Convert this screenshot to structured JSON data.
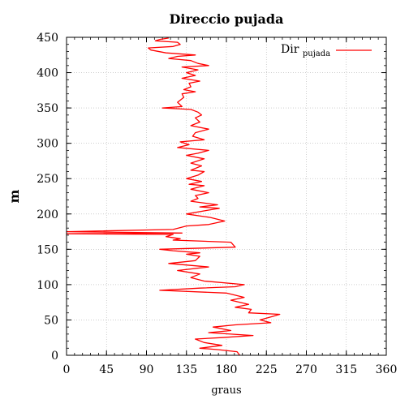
{
  "chart_data": {
    "type": "line",
    "title": "Direccio pujada",
    "xlabel": "graus",
    "ylabel": "m",
    "xlim": [
      0,
      360
    ],
    "ylim": [
      0,
      450
    ],
    "xticks": [
      0,
      45,
      90,
      135,
      180,
      225,
      270,
      315,
      360
    ],
    "yticks": [
      0,
      50,
      100,
      150,
      200,
      250,
      300,
      350,
      400,
      450
    ],
    "grid": true,
    "legend_position": "top-right",
    "legend": {
      "main": "Dir",
      "sub": "pujada"
    },
    "color": "#ff0000",
    "series": [
      {
        "name": "Dir pujada",
        "points": [
          [
            195,
            0
          ],
          [
            192,
            5
          ],
          [
            170,
            8
          ],
          [
            150,
            10
          ],
          [
            175,
            14
          ],
          [
            155,
            18
          ],
          [
            145,
            23
          ],
          [
            175,
            25
          ],
          [
            210,
            28
          ],
          [
            160,
            32
          ],
          [
            185,
            35
          ],
          [
            165,
            40
          ],
          [
            190,
            43
          ],
          [
            230,
            46
          ],
          [
            218,
            50
          ],
          [
            232,
            55
          ],
          [
            240,
            58
          ],
          [
            205,
            60
          ],
          [
            208,
            65
          ],
          [
            190,
            68
          ],
          [
            205,
            72
          ],
          [
            185,
            78
          ],
          [
            200,
            82
          ],
          [
            180,
            88
          ],
          [
            105,
            92
          ],
          [
            150,
            95
          ],
          [
            190,
            97
          ],
          [
            200,
            100
          ],
          [
            155,
            105
          ],
          [
            140,
            110
          ],
          [
            150,
            115
          ],
          [
            125,
            120
          ],
          [
            160,
            125
          ],
          [
            115,
            130
          ],
          [
            145,
            134
          ],
          [
            150,
            140
          ],
          [
            135,
            143
          ],
          [
            150,
            145
          ],
          [
            120,
            148
          ],
          [
            105,
            150
          ],
          [
            190,
            153
          ],
          [
            185,
            160
          ],
          [
            120,
            163
          ],
          [
            128,
            165
          ],
          [
            112,
            168
          ],
          [
            120,
            171
          ],
          [
            0,
            172
          ],
          [
            130,
            173
          ],
          [
            0,
            175
          ],
          [
            120,
            178
          ],
          [
            135,
            183
          ],
          [
            160,
            185
          ],
          [
            178,
            190
          ],
          [
            162,
            195
          ],
          [
            135,
            200
          ],
          [
            158,
            205
          ],
          [
            172,
            208
          ],
          [
            150,
            210
          ],
          [
            170,
            213
          ],
          [
            140,
            218
          ],
          [
            148,
            222
          ],
          [
            145,
            226
          ],
          [
            160,
            230
          ],
          [
            140,
            235
          ],
          [
            155,
            240
          ],
          [
            138,
            242
          ],
          [
            152,
            246
          ],
          [
            135,
            250
          ],
          [
            148,
            255
          ],
          [
            155,
            260
          ],
          [
            140,
            262
          ],
          [
            152,
            268
          ],
          [
            140,
            272
          ],
          [
            155,
            278
          ],
          [
            135,
            283
          ],
          [
            148,
            286
          ],
          [
            160,
            290
          ],
          [
            125,
            294
          ],
          [
            138,
            298
          ],
          [
            128,
            302
          ],
          [
            155,
            305
          ],
          [
            142,
            310
          ],
          [
            145,
            315
          ],
          [
            160,
            320
          ],
          [
            140,
            325
          ],
          [
            150,
            330
          ],
          [
            145,
            336
          ],
          [
            152,
            340
          ],
          [
            148,
            344
          ],
          [
            140,
            348
          ],
          [
            108,
            350
          ],
          [
            130,
            352
          ],
          [
            125,
            358
          ],
          [
            132,
            365
          ],
          [
            130,
            370
          ],
          [
            145,
            373
          ],
          [
            132,
            376
          ],
          [
            140,
            380
          ],
          [
            138,
            385
          ],
          [
            150,
            388
          ],
          [
            130,
            392
          ],
          [
            145,
            396
          ],
          [
            135,
            400
          ],
          [
            148,
            404
          ],
          [
            130,
            408
          ],
          [
            160,
            410
          ],
          [
            148,
            413
          ],
          [
            140,
            417
          ],
          [
            115,
            420
          ],
          [
            125,
            423
          ],
          [
            145,
            425
          ],
          [
            112,
            428
          ],
          [
            95,
            432
          ],
          [
            92,
            435
          ],
          [
            120,
            437
          ],
          [
            128,
            440
          ],
          [
            125,
            443
          ],
          [
            100,
            445
          ],
          [
            105,
            447
          ],
          [
            115,
            449
          ]
        ]
      }
    ]
  }
}
